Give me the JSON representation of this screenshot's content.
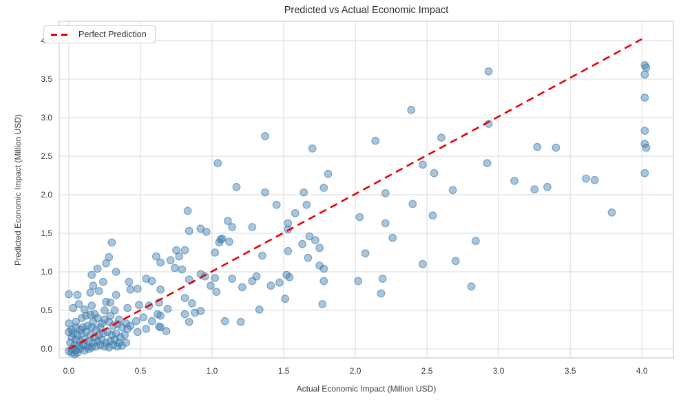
{
  "colors": {
    "point_fill": "#3d7fb4",
    "point_edge": "#35729f",
    "line_color": "#e60000",
    "grid_color": "#d9d9d9",
    "spine_color": "#cccccc",
    "tick_text": "#3a3a3a",
    "title_text": "#2b2b2b"
  },
  "legend": {
    "label": "Perfect Prediction"
  },
  "chart_data": {
    "type": "scatter",
    "title": "Predicted vs Actual Economic Impact",
    "xlabel": "Actual Economic Impact (Million USD)",
    "ylabel": "Predicted Economic Impact (Million USD)",
    "xlim": [
      -0.067,
      4.22
    ],
    "ylim": [
      -0.116,
      4.25
    ],
    "xticks": [
      0.0,
      0.5,
      1.0,
      1.5,
      2.0,
      2.5,
      3.0,
      3.5,
      4.0
    ],
    "yticks": [
      0.0,
      0.5,
      1.0,
      1.5,
      2.0,
      2.5,
      3.0,
      3.5,
      4.0
    ],
    "grid": true,
    "legend_position": "upper-left",
    "reference_line": {
      "name": "Perfect Prediction",
      "x": [
        0.0,
        4.0
      ],
      "y": [
        0.0,
        4.02
      ],
      "style": "dashed"
    },
    "series": [
      {
        "name": "predictions",
        "points": [
          [
            4.02,
            3.68
          ],
          [
            4.03,
            3.65
          ],
          [
            4.02,
            3.56
          ],
          [
            4.02,
            3.26
          ],
          [
            4.02,
            2.83
          ],
          [
            4.02,
            2.66
          ],
          [
            4.03,
            2.61
          ],
          [
            4.02,
            2.28
          ],
          [
            3.79,
            1.77
          ],
          [
            3.61,
            2.21
          ],
          [
            3.67,
            2.19
          ],
          [
            3.27,
            2.62
          ],
          [
            3.4,
            2.61
          ],
          [
            3.25,
            2.07
          ],
          [
            3.34,
            2.1
          ],
          [
            3.11,
            2.18
          ],
          [
            2.93,
            3.6
          ],
          [
            2.93,
            2.92
          ],
          [
            2.92,
            2.41
          ],
          [
            2.84,
            1.4
          ],
          [
            2.81,
            0.81
          ],
          [
            2.7,
            1.14
          ],
          [
            2.68,
            2.06
          ],
          [
            2.6,
            2.74
          ],
          [
            2.55,
            2.28
          ],
          [
            2.54,
            1.73
          ],
          [
            2.47,
            2.39
          ],
          [
            2.47,
            1.1
          ],
          [
            2.4,
            1.88
          ],
          [
            2.39,
            3.1
          ],
          [
            2.26,
            1.44
          ],
          [
            2.21,
            2.02
          ],
          [
            2.21,
            1.63
          ],
          [
            2.19,
            0.91
          ],
          [
            2.18,
            0.72
          ],
          [
            2.14,
            2.7
          ],
          [
            2.07,
            1.24
          ],
          [
            2.03,
            1.71
          ],
          [
            2.02,
            0.88
          ],
          [
            1.81,
            2.27
          ],
          [
            1.78,
            2.09
          ],
          [
            1.7,
            2.6
          ],
          [
            1.64,
            2.03
          ],
          [
            1.66,
            1.87
          ],
          [
            1.58,
            1.76
          ],
          [
            1.53,
            1.63
          ],
          [
            1.53,
            1.55
          ],
          [
            1.68,
            1.46
          ],
          [
            1.72,
            1.41
          ],
          [
            1.63,
            1.36
          ],
          [
            1.75,
            1.31
          ],
          [
            1.53,
            1.27
          ],
          [
            1.45,
            1.87
          ],
          [
            1.37,
            2.76
          ],
          [
            1.37,
            2.03
          ],
          [
            1.35,
            1.21
          ],
          [
            1.67,
            1.18
          ],
          [
            1.75,
            1.08
          ],
          [
            1.78,
            1.04
          ],
          [
            1.52,
            0.96
          ],
          [
            1.54,
            0.93
          ],
          [
            1.78,
            0.88
          ],
          [
            1.47,
            0.86
          ],
          [
            1.41,
            0.82
          ],
          [
            1.51,
            0.65
          ],
          [
            1.77,
            0.58
          ],
          [
            1.33,
            0.51
          ],
          [
            1.31,
            0.94
          ],
          [
            1.28,
            1.58
          ],
          [
            1.28,
            0.88
          ],
          [
            1.17,
            2.1
          ],
          [
            1.11,
            1.66
          ],
          [
            1.14,
            1.58
          ],
          [
            1.07,
            1.43
          ],
          [
            1.05,
            1.38
          ],
          [
            1.12,
            1.39
          ],
          [
            1.06,
            1.42
          ],
          [
            1.04,
            2.41
          ],
          [
            1.02,
            1.25
          ],
          [
            1.02,
            0.92
          ],
          [
            1.21,
            0.8
          ],
          [
            1.14,
            0.91
          ],
          [
            1.09,
            0.36
          ],
          [
            1.2,
            0.35
          ],
          [
            0.99,
            0.82
          ],
          [
            1.03,
            0.74
          ],
          [
            0.92,
            1.56
          ],
          [
            0.96,
            1.52
          ],
          [
            0.84,
            1.53
          ],
          [
            0.83,
            1.79
          ],
          [
            0.92,
            0.97
          ],
          [
            0.95,
            0.94
          ],
          [
            0.84,
            0.9
          ],
          [
            0.81,
            0.66
          ],
          [
            0.86,
            0.59
          ],
          [
            0.81,
            0.45
          ],
          [
            0.84,
            0.35
          ],
          [
            0.88,
            0.47
          ],
          [
            0.92,
            0.49
          ],
          [
            0.75,
            1.28
          ],
          [
            0.81,
            1.28
          ],
          [
            0.77,
            1.2
          ],
          [
            0.71,
            1.15
          ],
          [
            0.64,
            1.12
          ],
          [
            0.61,
            1.2
          ],
          [
            0.74,
            1.05
          ],
          [
            0.79,
            1.03
          ],
          [
            0.54,
            0.91
          ],
          [
            0.58,
            0.88
          ],
          [
            0.64,
            0.77
          ],
          [
            0.69,
            0.52
          ],
          [
            0.63,
            0.6
          ],
          [
            0.64,
            0.43
          ],
          [
            0.64,
            0.28
          ],
          [
            0.63,
            0.29
          ],
          [
            0.68,
            0.23
          ],
          [
            0.62,
            0.45
          ],
          [
            0.58,
            0.36
          ],
          [
            0.56,
            0.56
          ],
          [
            0.42,
            0.87
          ],
          [
            0.48,
            0.78
          ],
          [
            0.43,
            0.77
          ],
          [
            0.54,
            0.26
          ],
          [
            0.52,
            0.41
          ],
          [
            0.49,
            0.57
          ],
          [
            0.48,
            0.22
          ],
          [
            0.47,
            0.36
          ],
          [
            0.41,
            0.53
          ],
          [
            0.41,
            0.26
          ],
          [
            0.35,
            0.38
          ],
          [
            0.33,
            0.7
          ],
          [
            0.32,
            0.5
          ],
          [
            0.29,
            0.43
          ],
          [
            0.3,
            1.38
          ],
          [
            0.33,
            1.0
          ],
          [
            0.28,
            1.19
          ],
          [
            0.26,
            1.11
          ],
          [
            0.24,
            0.87
          ],
          [
            0.2,
            1.04
          ],
          [
            0.16,
            0.96
          ],
          [
            0.17,
            0.82
          ],
          [
            0.25,
            0.5
          ],
          [
            0.26,
            0.61
          ],
          [
            0.29,
            0.6
          ],
          [
            0.21,
            0.75
          ],
          [
            0.15,
            0.73
          ],
          [
            0.16,
            0.56
          ],
          [
            0.18,
            0.45
          ],
          [
            0.11,
            0.51
          ],
          [
            0.07,
            0.58
          ],
          [
            0.03,
            0.53
          ],
          [
            0.0,
            0.71
          ],
          [
            0.06,
            0.7
          ],
          [
            0.0,
            0.33
          ],
          [
            0.05,
            0.35
          ],
          [
            0.09,
            0.4
          ],
          [
            0.12,
            0.43
          ],
          [
            0.15,
            0.44
          ],
          [
            0.17,
            0.35
          ],
          [
            0.2,
            0.4
          ],
          [
            0.23,
            0.33
          ],
          [
            0.25,
            0.38
          ],
          [
            0.28,
            0.35
          ],
          [
            0.31,
            0.3
          ],
          [
            0.34,
            0.32
          ],
          [
            0.37,
            0.28
          ],
          [
            0.4,
            0.33
          ],
          [
            0.43,
            0.3
          ],
          [
            0.22,
            0.28
          ],
          [
            0.19,
            0.25
          ],
          [
            0.16,
            0.28
          ],
          [
            0.13,
            0.3
          ],
          [
            0.1,
            0.28
          ],
          [
            0.08,
            0.25
          ],
          [
            0.05,
            0.28
          ],
          [
            0.02,
            0.25
          ],
          [
            0.0,
            0.22
          ],
          [
            0.03,
            0.2
          ],
          [
            0.06,
            0.18
          ],
          [
            0.09,
            0.2
          ],
          [
            0.12,
            0.22
          ],
          [
            0.15,
            0.18
          ],
          [
            0.18,
            0.15
          ],
          [
            0.21,
            0.18
          ],
          [
            0.24,
            0.2
          ],
          [
            0.27,
            0.22
          ],
          [
            0.3,
            0.18
          ],
          [
            0.33,
            0.2
          ],
          [
            0.36,
            0.15
          ],
          [
            0.39,
            0.18
          ],
          [
            0.02,
            0.15
          ],
          [
            0.05,
            0.12
          ],
          [
            0.08,
            0.1
          ],
          [
            0.11,
            0.12
          ],
          [
            0.14,
            0.1
          ],
          [
            0.17,
            0.08
          ],
          [
            0.2,
            0.1
          ],
          [
            0.23,
            0.12
          ],
          [
            0.26,
            0.08
          ],
          [
            0.29,
            0.1
          ],
          [
            0.32,
            0.12
          ],
          [
            0.35,
            0.08
          ],
          [
            0.01,
            0.08
          ],
          [
            0.04,
            0.05
          ],
          [
            0.07,
            0.03
          ],
          [
            0.1,
            0.05
          ],
          [
            0.13,
            0.03
          ],
          [
            0.16,
            0.02
          ],
          [
            0.19,
            0.03
          ],
          [
            0.22,
            0.05
          ],
          [
            0.25,
            0.03
          ],
          [
            0.28,
            0.02
          ],
          [
            0.31,
            0.05
          ],
          [
            0.02,
            0.0
          ],
          [
            0.05,
            -0.02
          ],
          [
            0.08,
            0.0
          ],
          [
            0.11,
            -0.02
          ],
          [
            0.14,
            0.0
          ],
          [
            0.02,
            -0.05
          ],
          [
            0.04,
            -0.07
          ],
          [
            0.0,
            -0.03
          ],
          [
            0.06,
            -0.05
          ],
          [
            0.37,
            0.04
          ],
          [
            0.4,
            0.08
          ],
          [
            0.34,
            0.03
          ]
        ]
      }
    ]
  }
}
